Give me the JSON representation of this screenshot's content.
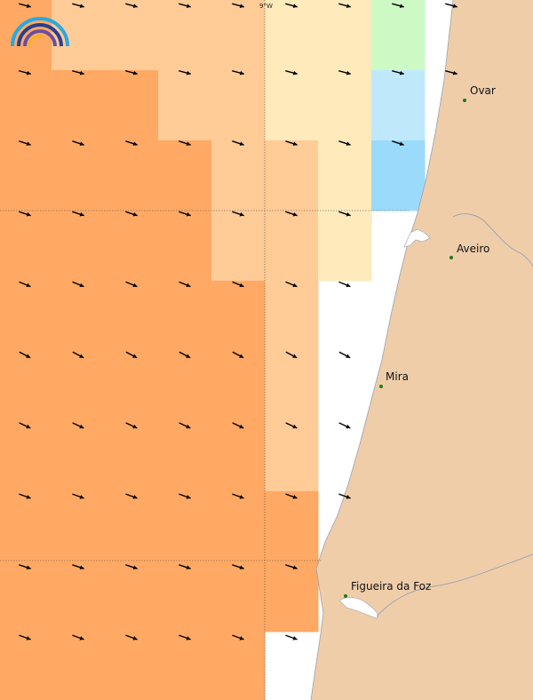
{
  "map": {
    "longitude_label": "9°W",
    "colors": {
      "sea_white": "#ffffff",
      "land": "#efcda9",
      "coast_line": "#9aa0b0",
      "graticule": "#555555",
      "level_0": "#ffa964",
      "level_1": "#ffcb97",
      "level_2": "#ffeabb",
      "level_3": "#cdfac4",
      "level_4": "#bfe9fb",
      "level_5": "#9bdafa",
      "arrow": "#000000",
      "city_dot": "#1c7a1c"
    },
    "cells": [
      [
        "level_0",
        "level_1",
        "level_1",
        "level_1",
        "level_1",
        "level_2",
        "level_2",
        "level_3",
        "none"
      ],
      [
        "level_0",
        "level_0",
        "level_0",
        "level_1",
        "level_1",
        "level_2",
        "level_2",
        "level_4",
        "none"
      ],
      [
        "level_0",
        "level_0",
        "level_0",
        "level_0",
        "level_1",
        "level_1",
        "level_2",
        "level_5",
        "none"
      ],
      [
        "level_0",
        "level_0",
        "level_0",
        "level_0",
        "level_1",
        "level_1",
        "level_2",
        "none",
        "none"
      ],
      [
        "level_0",
        "level_0",
        "level_0",
        "level_0",
        "level_0",
        "level_1",
        "none",
        "none",
        "none"
      ],
      [
        "level_0",
        "level_0",
        "level_0",
        "level_0",
        "level_0",
        "level_1",
        "none",
        "none",
        "none"
      ],
      [
        "level_0",
        "level_0",
        "level_0",
        "level_0",
        "level_0",
        "level_1",
        "none",
        "none",
        "none"
      ],
      [
        "level_0",
        "level_0",
        "level_0",
        "level_0",
        "level_0",
        "level_0",
        "none",
        "none",
        "none"
      ],
      [
        "level_0",
        "level_0",
        "level_0",
        "level_0",
        "level_0",
        "level_0",
        "none",
        "none",
        "none"
      ],
      [
        "level_0",
        "level_0",
        "level_0",
        "level_0",
        "level_0",
        "none",
        "none",
        "none",
        "none"
      ]
    ],
    "arrow_rows": [
      {
        "count": 9,
        "angle_deg": 15
      },
      {
        "count": 9,
        "angle_deg": 15
      },
      {
        "count": 8,
        "angle_deg": 18
      },
      {
        "count": 7,
        "angle_deg": 18
      },
      {
        "count": 7,
        "angle_deg": 22
      },
      {
        "count": 7,
        "angle_deg": 28
      },
      {
        "count": 7,
        "angle_deg": 25
      },
      {
        "count": 7,
        "angle_deg": 20
      },
      {
        "count": 6,
        "angle_deg": 18
      },
      {
        "count": 6,
        "angle_deg": 20
      }
    ],
    "cities": [
      {
        "name": "Ovar"
      },
      {
        "name": "Aveiro"
      },
      {
        "name": "Mira"
      },
      {
        "name": "Figueira da Foz"
      }
    ]
  }
}
